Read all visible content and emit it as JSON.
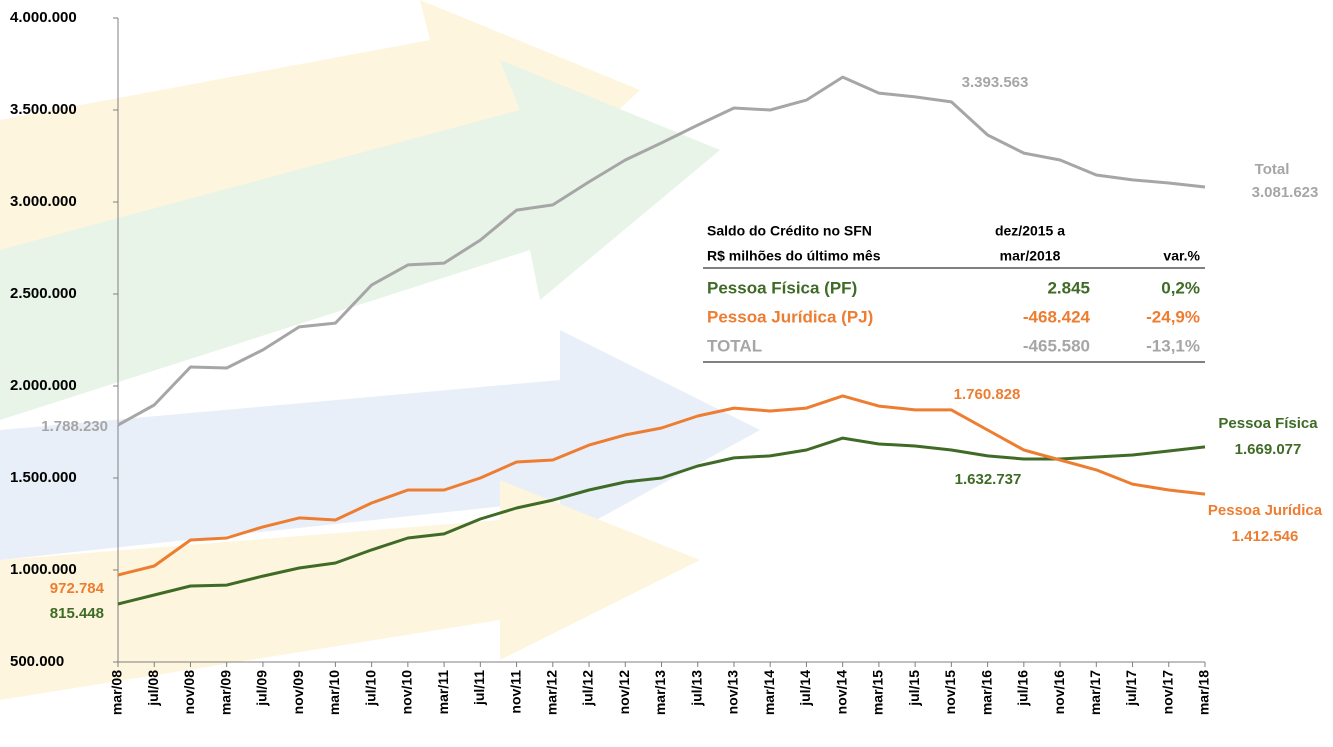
{
  "chart_data": {
    "type": "line",
    "categories": [
      "mar/08",
      "jul/08",
      "nov/08",
      "mar/09",
      "jul/09",
      "nov/09",
      "mar/10",
      "jul/10",
      "nov/10",
      "mar/11",
      "jul/11",
      "nov/11",
      "mar/12",
      "jul/12",
      "nov/12",
      "mar/13",
      "jul/13",
      "nov/13",
      "mar/14",
      "jul/14",
      "nov/14",
      "mar/15",
      "jul/15",
      "nov/15",
      "mar/16",
      "jul/16",
      "nov/16",
      "mar/17",
      "jul/17",
      "nov/17",
      "mar/18"
    ],
    "series": [
      {
        "name": "Total",
        "color": "#a6a6a6",
        "values": [
          1788230,
          1897000,
          2103000,
          2098000,
          2196000,
          2321000,
          2342000,
          2549000,
          2658000,
          2668000,
          2793000,
          2956000,
          2984000,
          3109000,
          3228000,
          3321000,
          3418000,
          3511000,
          3500000,
          3554000,
          3679000,
          3592000,
          3571000,
          3544000,
          3364000,
          3266000,
          3228000,
          3147000,
          3120000,
          3103000,
          3081623
        ]
      },
      {
        "name": "Pessoa Física",
        "color": "#3f6b27",
        "values": [
          815448,
          864000,
          913000,
          918000,
          967000,
          1011000,
          1038000,
          1109000,
          1174000,
          1196000,
          1277000,
          1337000,
          1380000,
          1435000,
          1478000,
          1500000,
          1565000,
          1609000,
          1620000,
          1652000,
          1717000,
          1685000,
          1674000,
          1652000,
          1620000,
          1603000,
          1603000,
          1614000,
          1625000,
          1647000,
          1669077
        ]
      },
      {
        "name": "Pessoa Jurídica",
        "color": "#ed7d31",
        "values": [
          972784,
          1022000,
          1163000,
          1174000,
          1234000,
          1283000,
          1272000,
          1364000,
          1435000,
          1435000,
          1500000,
          1587000,
          1598000,
          1679000,
          1734000,
          1772000,
          1837000,
          1880000,
          1864000,
          1880000,
          1946000,
          1891000,
          1870000,
          1870000,
          1761000,
          1652000,
          1598000,
          1544000,
          1467000,
          1435000,
          1412546
        ]
      }
    ],
    "ylim": [
      500000,
      4000000
    ],
    "yticks": [
      {
        "value": 500000,
        "label": "500.000"
      },
      {
        "value": 1000000,
        "label": "1.000.000"
      },
      {
        "value": 1500000,
        "label": "1.500.000"
      },
      {
        "value": 2000000,
        "label": "2.000.000"
      },
      {
        "value": 2500000,
        "label": "2.500.000"
      },
      {
        "value": 3000000,
        "label": "3.000.000"
      },
      {
        "value": 3500000,
        "label": "3.500.000"
      },
      {
        "value": 4000000,
        "label": "4.000.000"
      }
    ],
    "grid": false,
    "annotations": [
      "3.393.563",
      "3.081.623",
      "1.788.230",
      "1.760.828",
      "1.669.077",
      "1.632.737",
      "1.412.546",
      "972.784",
      "815.448"
    ],
    "table": {
      "header": [
        [
          "Saldo do Crédito no SFN",
          "dez/2015 a"
        ],
        [
          "R$ milhões do último mês",
          "mar/2018",
          "var.%"
        ]
      ],
      "rows": [
        [
          "Pessoa Física (PF)",
          "2.845",
          "0,2%"
        ],
        [
          "Pessoa Jurídica (PJ)",
          "-468.424",
          "-24,9%"
        ],
        [
          "TOTAL",
          "-465.580",
          "-13,1%"
        ]
      ]
    }
  }
}
